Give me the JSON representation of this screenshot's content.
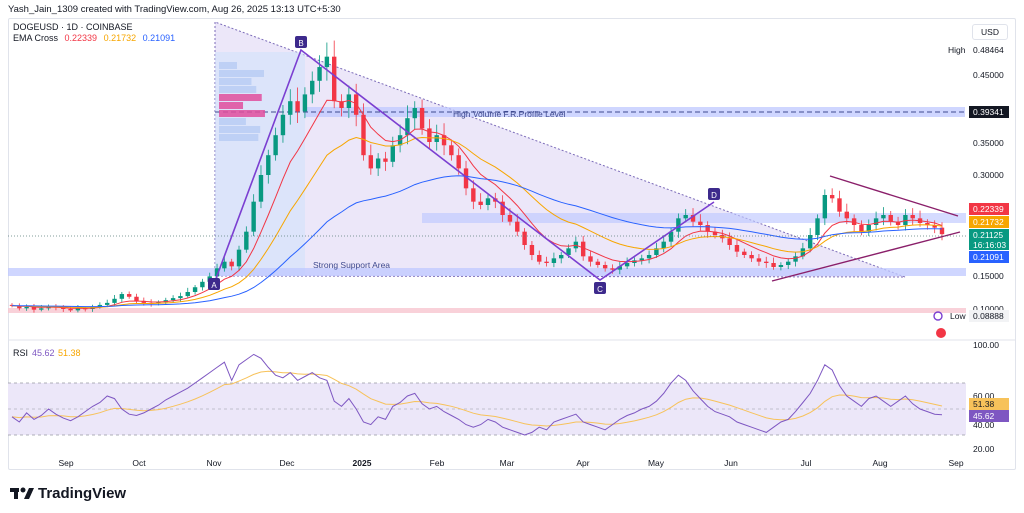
{
  "header": {
    "credit": "Yash_Jain_1309 created with TradingView.com, Aug 26, 2025 13:13 UTC+5:30"
  },
  "legend": {
    "symbol": "DOGEUSD · 1D · COINBASE",
    "indicator_name": "EMA Cross",
    "ema_values": [
      "0.22339",
      "0.21732",
      "0.21091"
    ]
  },
  "currency": "USD",
  "brand": {
    "name": "TradingView"
  },
  "colors": {
    "ema_fast": "#f23645",
    "ema_mid": "#f7a600",
    "ema_slow": "#2962ff",
    "candle_up": "#089981",
    "candle_down": "#f23645",
    "triangle_fill": "#ece7f9",
    "pattern_line": "#7b3fd1",
    "support_zone": "#bfc8ff",
    "rsi_line": "#7e57c2",
    "rsi_ma": "#f7c25a"
  },
  "chart_data": [
    {
      "type": "candlestick",
      "title": "DOGEUSD · 1D · COINBASE",
      "x_ticks": [
        "Sep",
        "Oct",
        "Nov",
        "Dec",
        "2025",
        "Feb",
        "Mar",
        "Apr",
        "May",
        "Jun",
        "Jul",
        "Aug",
        "Sep"
      ],
      "y_ticks": [
        "0.45000",
        "0.35000",
        "0.30000",
        "0.15000",
        "0.10000"
      ],
      "ylim": [
        0.075,
        0.53
      ],
      "price_axis_labels": {
        "high_label": "High",
        "high": "0.48464",
        "zone_level": "0.39341",
        "ema_fast": "0.22339",
        "ema_mid": "0.21732",
        "last": "0.21125",
        "countdown": "16:16:03",
        "ema_slow": "0.21091",
        "low_label": "Low",
        "low": "0.08888"
      },
      "annotations": {
        "volume_profile_level": "High Volume F.R.Profile Level",
        "support": "Strong Support Area",
        "points": [
          "A",
          "B",
          "C",
          "D"
        ]
      },
      "close_series": [
        0.105,
        0.101,
        0.103,
        0.099,
        0.101,
        0.104,
        0.102,
        0.1,
        0.098,
        0.101,
        0.1,
        0.103,
        0.106,
        0.109,
        0.115,
        0.122,
        0.118,
        0.112,
        0.109,
        0.108,
        0.11,
        0.113,
        0.116,
        0.119,
        0.125,
        0.132,
        0.14,
        0.148,
        0.16,
        0.17,
        0.163,
        0.188,
        0.215,
        0.26,
        0.3,
        0.33,
        0.36,
        0.39,
        0.41,
        0.395,
        0.42,
        0.44,
        0.46,
        0.475,
        0.41,
        0.4,
        0.42,
        0.39,
        0.33,
        0.31,
        0.325,
        0.32,
        0.345,
        0.36,
        0.385,
        0.4,
        0.37,
        0.35,
        0.36,
        0.345,
        0.33,
        0.31,
        0.28,
        0.26,
        0.255,
        0.265,
        0.26,
        0.24,
        0.23,
        0.215,
        0.195,
        0.18,
        0.17,
        0.168,
        0.175,
        0.18,
        0.19,
        0.2,
        0.178,
        0.17,
        0.165,
        0.16,
        0.158,
        0.163,
        0.168,
        0.172,
        0.175,
        0.18,
        0.19,
        0.2,
        0.215,
        0.235,
        0.24,
        0.23,
        0.225,
        0.215,
        0.21,
        0.205,
        0.195,
        0.185,
        0.18,
        0.175,
        0.17,
        0.168,
        0.162,
        0.165,
        0.17,
        0.178,
        0.19,
        0.21,
        0.235,
        0.27,
        0.265,
        0.245,
        0.235,
        0.225,
        0.215,
        0.225,
        0.235,
        0.24,
        0.23,
        0.225,
        0.24,
        0.235,
        0.228,
        0.225,
        0.221,
        0.21125
      ],
      "ema_values": [
        0.22339,
        0.21732,
        0.21091
      ]
    },
    {
      "type": "line",
      "title": "RSI",
      "values_shown": [
        "45.62",
        "51.38"
      ],
      "y_ticks": [
        "100.00",
        "60.00",
        "40.00",
        "20.00"
      ],
      "ylim": [
        15,
        105
      ],
      "bands": [
        70,
        50,
        30
      ],
      "rsi_series": [
        44,
        40,
        47,
        42,
        45,
        50,
        46,
        43,
        41,
        44,
        48,
        52,
        55,
        60,
        58,
        50,
        46,
        45,
        47,
        50,
        53,
        57,
        60,
        63,
        66,
        70,
        74,
        78,
        82,
        86,
        72,
        84,
        88,
        92,
        89,
        82,
        76,
        74,
        78,
        72,
        75,
        78,
        74,
        72,
        56,
        52,
        58,
        50,
        40,
        38,
        44,
        42,
        52,
        55,
        60,
        62,
        54,
        50,
        52,
        48,
        45,
        42,
        38,
        36,
        38,
        42,
        40,
        36,
        34,
        32,
        30,
        32,
        36,
        34,
        40,
        42,
        44,
        46,
        40,
        38,
        36,
        34,
        38,
        42,
        45,
        47,
        50,
        52,
        56,
        62,
        70,
        76,
        72,
        64,
        58,
        52,
        48,
        46,
        44,
        40,
        38,
        36,
        34,
        32,
        36,
        40,
        42,
        48,
        55,
        62,
        72,
        84,
        80,
        68,
        60,
        56,
        52,
        58,
        60,
        56,
        52,
        56,
        60,
        54,
        50,
        48,
        46,
        45.62
      ]
    }
  ]
}
